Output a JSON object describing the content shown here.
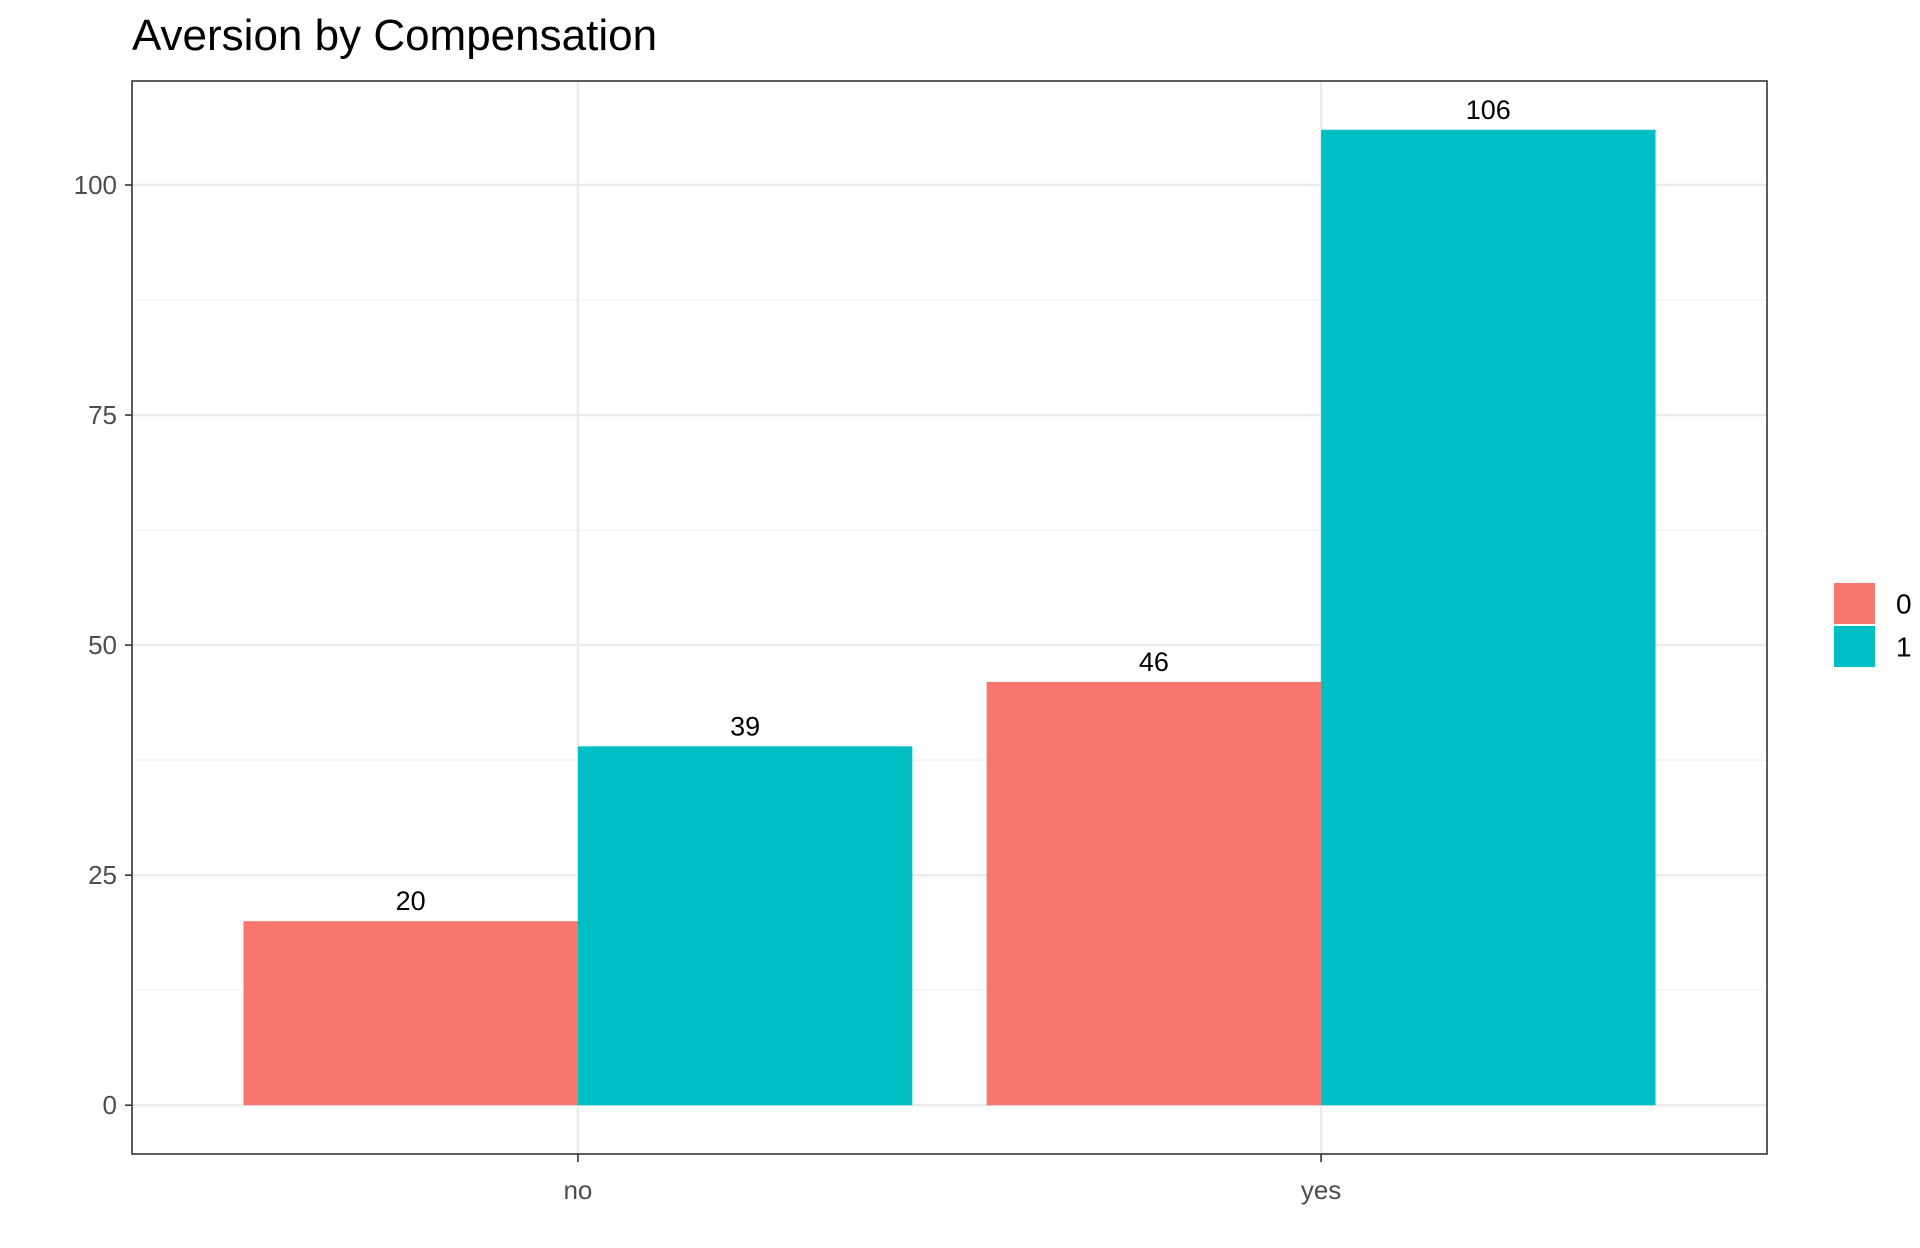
{
  "chart_data": {
    "type": "bar",
    "title": "Aversion by Compensation",
    "xlabel": "",
    "ylabel": "",
    "categories": [
      "no",
      "yes"
    ],
    "series": [
      {
        "name": "0",
        "values": [
          20,
          46
        ],
        "color": "#F8766D"
      },
      {
        "name": "1",
        "values": [
          39,
          106
        ],
        "color": "#00BFC4"
      }
    ],
    "ylim": [
      -5.3,
      111.3
    ],
    "yticks": [
      0,
      25,
      50,
      75,
      100
    ],
    "grid": true,
    "legend_position": "right"
  }
}
